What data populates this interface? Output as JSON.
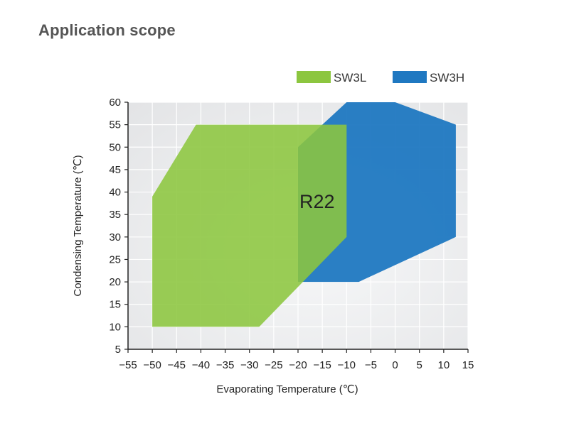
{
  "page": {
    "title": "Application scope"
  },
  "chart_data": {
    "type": "area",
    "title": "",
    "xlabel": "Evaporating Temperature (℃)",
    "ylabel": "Condensing Temperature (℃)",
    "xlim": [
      -55,
      15
    ],
    "ylim": [
      5,
      60
    ],
    "x_ticks": [
      -55,
      -50,
      -45,
      -40,
      -35,
      -30,
      -25,
      -20,
      -15,
      -10,
      -5,
      0,
      5,
      10,
      15
    ],
    "y_ticks": [
      5,
      10,
      15,
      20,
      25,
      30,
      35,
      40,
      45,
      50,
      55,
      60
    ],
    "grid": true,
    "legend_position": "top-right",
    "annotation": "R22",
    "series": [
      {
        "name": "SW3L",
        "color": "#8cc63f",
        "polygon": [
          [
            -50,
            10
          ],
          [
            -50,
            39
          ],
          [
            -41,
            55
          ],
          [
            -10,
            55
          ],
          [
            -10,
            30
          ],
          [
            -28,
            10
          ]
        ]
      },
      {
        "name": "SW3H",
        "color": "#1f78c1",
        "polygon": [
          [
            -20,
            20
          ],
          [
            -20,
            50
          ],
          [
            -10,
            60
          ],
          [
            0,
            60
          ],
          [
            12.5,
            55
          ],
          [
            12.5,
            30
          ],
          [
            -7.5,
            20
          ]
        ]
      }
    ]
  }
}
